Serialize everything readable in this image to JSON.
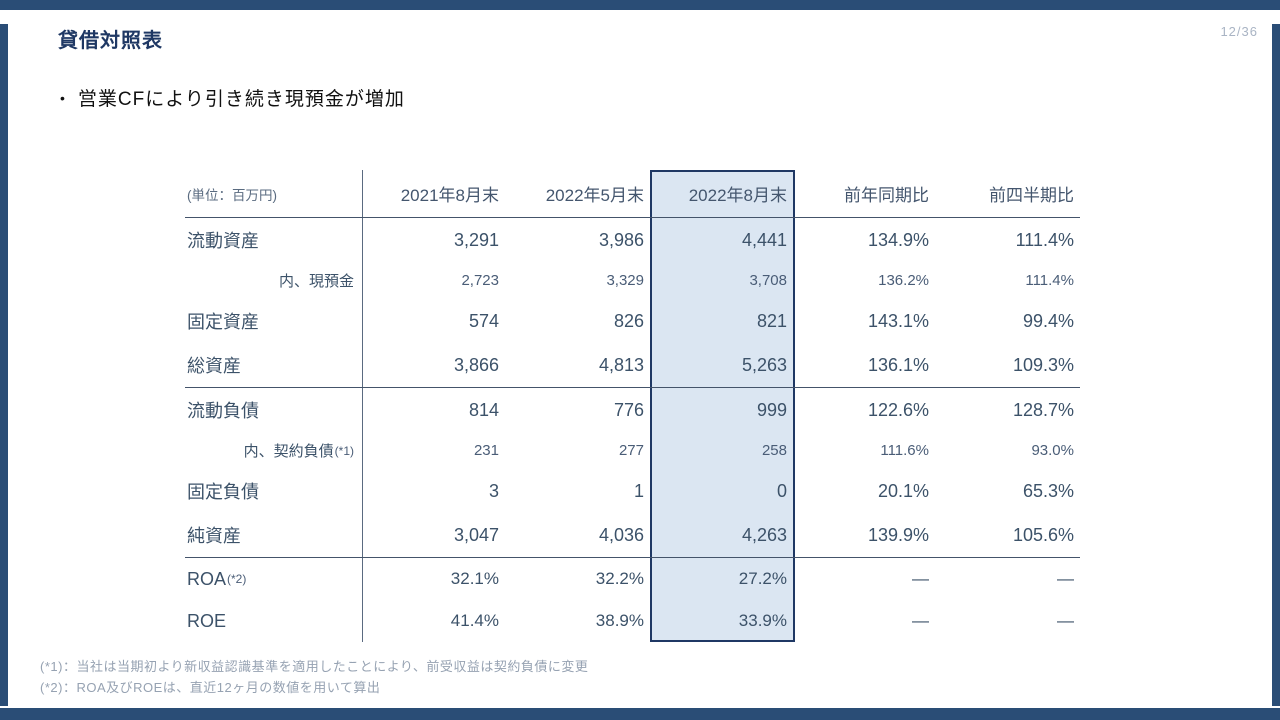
{
  "page": {
    "number": "12/36"
  },
  "title": "貸借対照表",
  "bullet": {
    "marker": "•",
    "text": "営業CFにより引き続き現預金が増加"
  },
  "table": {
    "unit_label": "(単位：百万円)",
    "columns": [
      "2021年8月末",
      "2022年5月末",
      "2022年8月末",
      "前年同期比",
      "前四半期比"
    ],
    "highlight_column": "2022年8月末",
    "rows": [
      {
        "label": "流動資産",
        "label_note": "",
        "sub": false,
        "ratio": false,
        "section_end": false,
        "values": [
          "3,291",
          "3,986",
          "4,441",
          "134.9%",
          "111.4%"
        ]
      },
      {
        "label": "内、現預金",
        "label_note": "",
        "sub": true,
        "ratio": false,
        "section_end": false,
        "values": [
          "2,723",
          "3,329",
          "3,708",
          "136.2%",
          "111.4%"
        ]
      },
      {
        "label": "固定資産",
        "label_note": "",
        "sub": false,
        "ratio": false,
        "section_end": false,
        "values": [
          "574",
          "826",
          "821",
          "143.1%",
          "99.4%"
        ]
      },
      {
        "label": "総資産",
        "label_note": "",
        "sub": false,
        "ratio": false,
        "section_end": true,
        "values": [
          "3,866",
          "4,813",
          "5,263",
          "136.1%",
          "109.3%"
        ]
      },
      {
        "label": "流動負債",
        "label_note": "",
        "sub": false,
        "ratio": false,
        "section_end": false,
        "values": [
          "814",
          "776",
          "999",
          "122.6%",
          "128.7%"
        ]
      },
      {
        "label": "内、契約負債",
        "label_note": "(*1)",
        "sub": true,
        "ratio": false,
        "section_end": false,
        "values": [
          "231",
          "277",
          "258",
          "111.6%",
          "93.0%"
        ]
      },
      {
        "label": "固定負債",
        "label_note": "",
        "sub": false,
        "ratio": false,
        "section_end": false,
        "values": [
          "3",
          "1",
          "0",
          "20.1%",
          "65.3%"
        ]
      },
      {
        "label": "純資産",
        "label_note": "",
        "sub": false,
        "ratio": false,
        "section_end": true,
        "values": [
          "3,047",
          "4,036",
          "4,263",
          "139.9%",
          "105.6%"
        ]
      },
      {
        "label": "ROA",
        "label_note": "(*2)",
        "sub": false,
        "ratio": true,
        "section_end": false,
        "values": [
          "32.1%",
          "32.2%",
          "27.2%",
          "—",
          "—"
        ]
      },
      {
        "label": "ROE",
        "label_note": "",
        "sub": false,
        "ratio": true,
        "section_end": false,
        "values": [
          "41.4%",
          "38.9%",
          "33.9%",
          "—",
          "—"
        ]
      }
    ]
  },
  "footnotes": [
    "(*1)：当社は当期初より新収益認識基準を適用したことにより、前受収益は契約負債に変更",
    "(*2)：ROA及びROEは、直近12ヶ月の数値を用いて算出"
  ],
  "colors": {
    "frame_navy": "#2a4d76",
    "title_navy": "#1f3864",
    "table_text": "#3c5269",
    "table_line": "#44546a",
    "highlight_fill": "#dbe6f2",
    "highlight_border": "#1f3864",
    "footnote_gray": "#96a2b2",
    "page_number_gray": "#a9b4c4"
  }
}
